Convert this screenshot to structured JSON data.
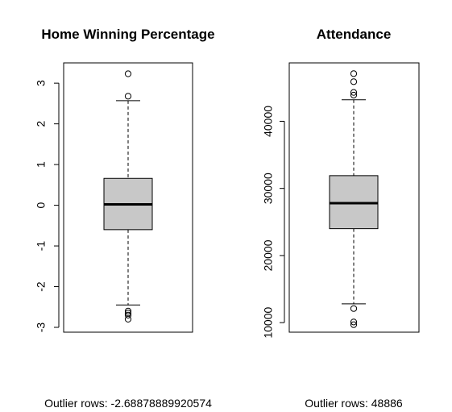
{
  "chart_data": [
    {
      "type": "boxplot",
      "title": "Home Winning Percentage",
      "ylim": [
        -3.0,
        3.3
      ],
      "yticks": [
        3,
        2,
        1,
        0,
        -1,
        -2,
        -3
      ],
      "ytick_labels": [
        "3",
        "2",
        "1",
        "0",
        "-1",
        "-2",
        "-3"
      ],
      "box": {
        "whisker_low": -2.45,
        "q1": -0.6,
        "median": 0.02,
        "q3": 0.66,
        "whisker_high": 2.57
      },
      "outliers": [
        3.23,
        2.68,
        -2.6,
        -2.65,
        -2.7,
        -2.8
      ],
      "footer_text": "Outlier rows: -2.68878889920574"
    },
    {
      "type": "boxplot",
      "title": "Attendance",
      "ylim": [
        9300,
        47500
      ],
      "yticks": [
        40000,
        30000,
        20000,
        10000
      ],
      "ytick_labels": [
        "40000",
        "30000",
        "20000",
        "10000"
      ],
      "box": {
        "whisker_low": 12800,
        "q1": 24000,
        "median": 27800,
        "q3": 31900,
        "whisker_high": 43200
      },
      "outliers": [
        47100,
        45900,
        44300,
        43900,
        12100,
        10100,
        9700
      ],
      "footer_text": "Outlier rows: 48886"
    }
  ],
  "colors": {
    "box_fill": "#c8c8c8",
    "stroke": "#000000",
    "background": "#ffffff"
  }
}
